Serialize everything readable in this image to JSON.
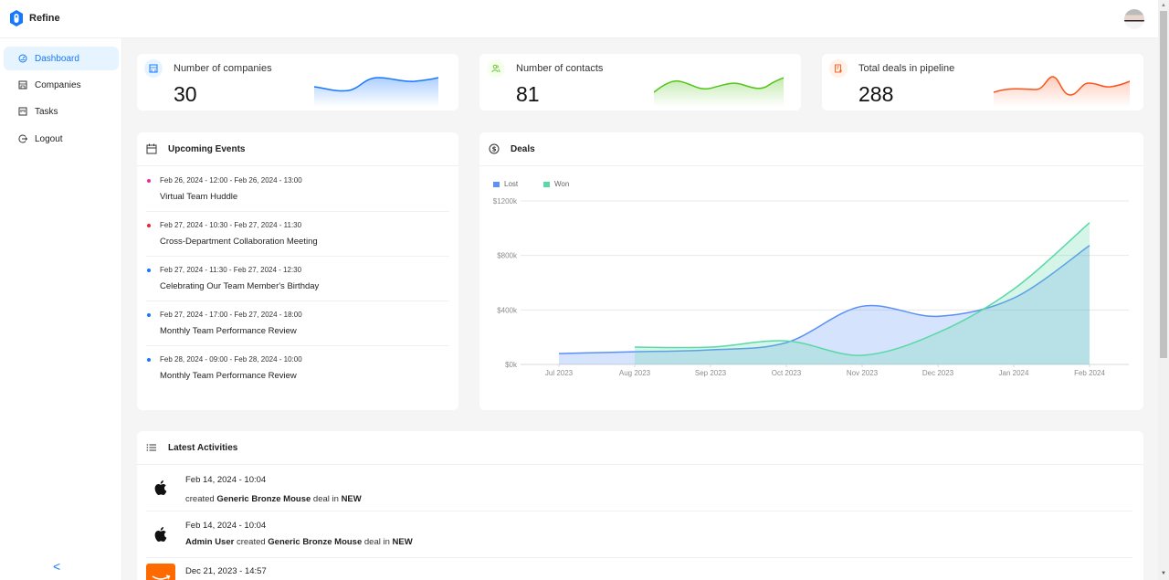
{
  "app": {
    "name": "Refine"
  },
  "sidebar": {
    "items": [
      {
        "label": "Dashboard",
        "icon": "dashboard-icon",
        "active": true
      },
      {
        "label": "Companies",
        "icon": "shop-icon",
        "active": false
      },
      {
        "label": "Tasks",
        "icon": "project-icon",
        "active": false
      },
      {
        "label": "Logout",
        "icon": "logout-icon",
        "active": false
      }
    ],
    "collapse_glyph": "<"
  },
  "kpis": [
    {
      "label": "Number of companies",
      "value": "30",
      "color": "#1677ff",
      "bg": "#e6f4ff"
    },
    {
      "label": "Number of contacts",
      "value": "81",
      "color": "#52c41a",
      "bg": "#f6ffed"
    },
    {
      "label": "Total deals in pipeline",
      "value": "288",
      "color": "#fa541c",
      "bg": "#fff2e8"
    }
  ],
  "upcoming_events": {
    "title": "Upcoming Events",
    "items": [
      {
        "date": "Feb 26, 2024 - 12:00 - Feb 26, 2024 - 13:00",
        "title": "Virtual Team Huddle",
        "color": "#eb2f96"
      },
      {
        "date": "Feb 27, 2024 - 10:30 - Feb 27, 2024 - 11:30",
        "title": "Cross-Department Collaboration Meeting",
        "color": "#f5222d"
      },
      {
        "date": "Feb 27, 2024 - 11:30 - Feb 27, 2024 - 12:30",
        "title": "Celebrating Our Team Member's Birthday",
        "color": "#1677ff"
      },
      {
        "date": "Feb 27, 2024 - 17:00 - Feb 27, 2024 - 18:00",
        "title": "Monthly Team Performance Review",
        "color": "#1677ff"
      },
      {
        "date": "Feb 28, 2024 - 09:00 - Feb 28, 2024 - 10:00",
        "title": "Monthly Team Performance Review",
        "color": "#1677ff"
      }
    ]
  },
  "deals": {
    "title": "Deals",
    "legend": [
      {
        "label": "Lost",
        "color": "#5b8ff9"
      },
      {
        "label": "Won",
        "color": "#5ad8a6"
      }
    ]
  },
  "chart_data": {
    "type": "area",
    "title": "Deals",
    "categories": [
      "Jul 2023",
      "Aug 2023",
      "Sep 2023",
      "Oct 2023",
      "Nov 2023",
      "Dec 2023",
      "Jan 2024",
      "Feb 2024"
    ],
    "series": [
      {
        "name": "Lost",
        "color": "#5b8ff9",
        "values": [
          80,
          93,
          107,
          160,
          427,
          353,
          487,
          873
        ]
      },
      {
        "name": "Won",
        "color": "#5ad8a6",
        "values": [
          null,
          127,
          127,
          173,
          67,
          233,
          553,
          1040
        ]
      }
    ],
    "yticks": [
      "$0k",
      "$400k",
      "$800k",
      "$1200k"
    ],
    "ylim": [
      0,
      1200
    ],
    "yunit": "$k",
    "grid": true,
    "legend_position": "top-left"
  },
  "latest_activities": {
    "title": "Latest Activities",
    "items": [
      {
        "date": "Feb 14, 2024 - 10:04",
        "user": "",
        "verb": "created",
        "deal": "Generic Bronze Mouse",
        "mid": "deal in",
        "stage": "NEW",
        "logo": "apple"
      },
      {
        "date": "Feb 14, 2024 - 10:04",
        "user": "Admin User",
        "verb": "created",
        "deal": "Generic Bronze Mouse",
        "mid": "deal in",
        "stage": "NEW",
        "logo": "apple"
      },
      {
        "date": "Dec 21, 2023 - 14:57",
        "user": "",
        "verb": "",
        "deal": "",
        "mid": "",
        "stage": "",
        "logo": "amazon"
      }
    ]
  }
}
